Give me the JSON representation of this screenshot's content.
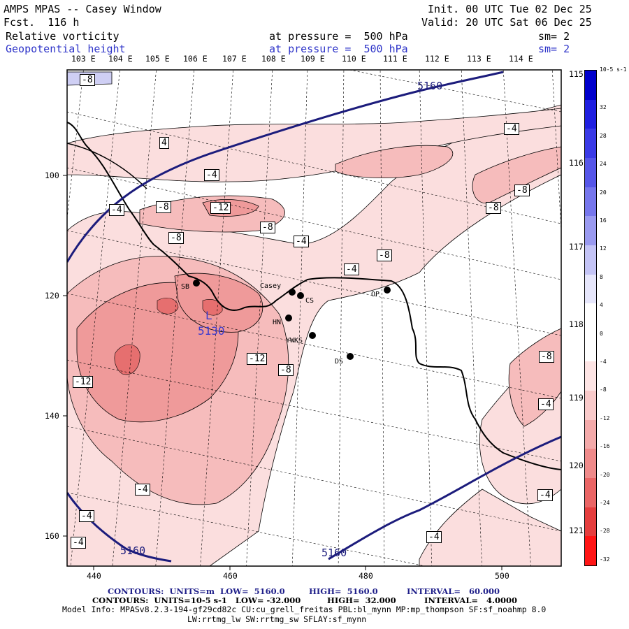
{
  "header": {
    "title": "AMPS MPAS -- Casey Window",
    "forecast": "Fcst.  116 h",
    "init": "Init. 00 UTC Tue 02 Dec 25",
    "valid": "Valid: 20 UTC Sat 06 Dec 25",
    "field1": {
      "name": "Relative vorticity",
      "level": "at pressure =  500 hPa",
      "smooth": "sm= 2"
    },
    "field2": {
      "name": "Geopotential height",
      "level": "at pressure =  500 hPa",
      "smooth": "sm= 2"
    }
  },
  "colors": {
    "frame": "#000000",
    "height_contour": "#1c1c7c",
    "negative_fill": "#f08a8a",
    "positive_fill": "#3b3bd6"
  },
  "axes": {
    "top_lon_labels": [
      "103 E",
      "104 E",
      "105 E",
      "106 E",
      "107 E",
      "108 E",
      "109 E",
      "110 E",
      "111 E",
      "112 E",
      "113 E",
      "114 E"
    ],
    "right_lon_labels": [
      "115 E",
      "116 E",
      "117 E",
      "118 E",
      "119 E",
      "120 E",
      "121 E"
    ],
    "x_ticks": [
      "440",
      "460",
      "480",
      "500"
    ],
    "y_ticks": [
      "100",
      "120",
      "140",
      "160"
    ]
  },
  "colorbar": {
    "unit": "10-5 s-1",
    "labels": [
      "32",
      "28",
      "24",
      "20",
      "16",
      "12",
      "8",
      "4",
      "0",
      "-4",
      "-8",
      "-12",
      "-16",
      "-20",
      "-24",
      "-28",
      "-32"
    ],
    "colors": [
      "#0000cc",
      "#1f1fe0",
      "#3a3ae6",
      "#5656e8",
      "#7676ec",
      "#9a9af0",
      "#c4c4f6",
      "#e6e6fb",
      "#ffffff",
      "#ffffff",
      "#fde4e4",
      "#f9caca",
      "#f4aaaa",
      "#ef8a8a",
      "#ea6565",
      "#e53e3e",
      "#ff1515"
    ]
  },
  "stations": [
    {
      "label": "SB"
    },
    {
      "label": "Casey"
    },
    {
      "label": "CS"
    },
    {
      "label": "HN"
    },
    {
      "label": "YWKS"
    },
    {
      "label": "DS"
    },
    {
      "label": "OP"
    }
  ],
  "height_labels": [
    "5160",
    "5160",
    "5160",
    "L",
    "5130"
  ],
  "vort_labels": [
    "-8",
    "4",
    "-4",
    "-4",
    "-8",
    "-12",
    "-8",
    "-4",
    "-8",
    "-8",
    "-8",
    "-4",
    "-8",
    "-4",
    "-12",
    "-12",
    "-8",
    "-8",
    "-4",
    "-4",
    "-4",
    "-4",
    "-4",
    "-4"
  ],
  "footer": {
    "line1": {
      "contours": "CONTOURS:  UNITS=m  LOW=  5160.0",
      "high": "HIGH=  5160.0",
      "interval": "INTERVAL=   60.000"
    },
    "line2": {
      "contours": "CONTOURS:  UNITS=10-5 s-1   LOW= -32.000",
      "high": "HIGH=  32.000",
      "interval": "INTERVAL=   4.0000"
    },
    "model_info": "Model Info: MPASv8.2.3-194-gf29cd82c CU:cu_grell_freitas PBL:bl_mynn MP:mp_thompson SF:sf_noahmp 8.0",
    "model_info2": "LW:rrtmg_lw SW:rrtmg_sw SFLAY:sf_mynn"
  }
}
